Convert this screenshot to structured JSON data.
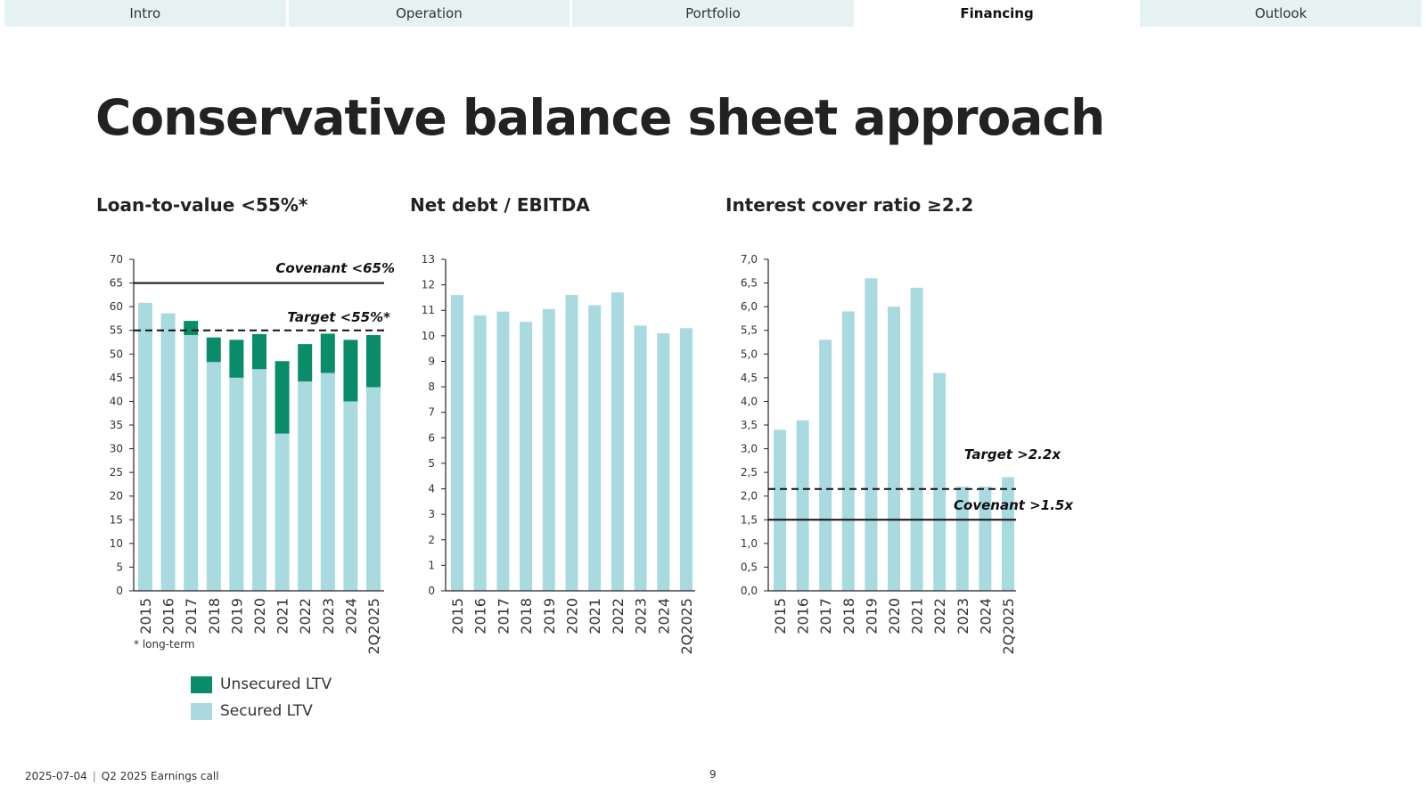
{
  "nav": {
    "tabs": [
      {
        "label": "Intro",
        "active": false
      },
      {
        "label": "Operation",
        "active": false
      },
      {
        "label": "Portfolio",
        "active": false
      },
      {
        "label": "Financing",
        "active": true
      },
      {
        "label": "Outlook",
        "active": false
      }
    ]
  },
  "slide": {
    "title": "Conservative balance sheet approach",
    "footnote": "* long-term",
    "footer_date": "2025-07-04",
    "footer_event": "Q2 2025 Earnings call",
    "page_number": "9"
  },
  "colors": {
    "secured": "#a8dae0",
    "unsecured": "#0a8c6a",
    "text": "#222222",
    "tab_bg": "#e6f2f2"
  },
  "legend": {
    "unsecured_label": "Unsecured LTV",
    "secured_label": "Secured LTV"
  },
  "chart_data": [
    {
      "type": "bar",
      "stacked": true,
      "title": "Loan-to-value <55%*",
      "categories": [
        "2015",
        "2016",
        "2017",
        "2018",
        "2019",
        "2020",
        "2021",
        "2022",
        "2023",
        "2024",
        "2Q2025"
      ],
      "series": [
        {
          "name": "Secured LTV",
          "values": [
            60.8,
            58.6,
            54,
            48.3,
            45,
            46.8,
            33.2,
            44.2,
            46,
            40,
            43
          ]
        },
        {
          "name": "Unsecured LTV",
          "values": [
            0,
            0,
            3,
            5.2,
            8,
            7.4,
            15.3,
            7.9,
            8.3,
            13,
            11
          ]
        }
      ],
      "reference_lines": [
        {
          "label": "Covenant <65%",
          "value": 65,
          "style": "solid"
        },
        {
          "label": "Target <55%*",
          "value": 55,
          "style": "dashed"
        }
      ],
      "yticks": [
        "0",
        "5",
        "10",
        "15",
        "20",
        "25",
        "30",
        "35",
        "40",
        "45",
        "50",
        "55",
        "60",
        "65",
        "70"
      ],
      "ylim": [
        0,
        70
      ]
    },
    {
      "type": "bar",
      "title": "Net debt / EBITDA",
      "categories": [
        "2015",
        "2016",
        "2017",
        "2018",
        "2019",
        "2020",
        "2021",
        "2022",
        "2023",
        "2024",
        "2Q2025"
      ],
      "series": [
        {
          "values": [
            11.6,
            10.8,
            10.95,
            10.55,
            11.05,
            11.6,
            11.2,
            11.7,
            10.4,
            10.1,
            10.3
          ]
        }
      ],
      "reference_lines": [],
      "yticks": [
        "0",
        "1",
        "2",
        "3",
        "4",
        "5",
        "6",
        "7",
        "8",
        "9",
        "10",
        "11",
        "12",
        "13"
      ],
      "ylim": [
        0,
        13
      ]
    },
    {
      "type": "bar",
      "title": "Interest cover ratio ≥2.2",
      "categories": [
        "2015",
        "2016",
        "2017",
        "2018",
        "2019",
        "2020",
        "2021",
        "2022",
        "2023",
        "2024",
        "2Q2025"
      ],
      "series": [
        {
          "values": [
            3.4,
            3.6,
            5.3,
            5.9,
            6.6,
            6.0,
            6.4,
            4.6,
            2.2,
            2.2,
            2.4
          ]
        }
      ],
      "reference_lines": [
        {
          "label": "Target >2.2x",
          "value": 2.15,
          "style": "dashed"
        },
        {
          "label": "Covenant >1.5x",
          "value": 1.5,
          "style": "solid"
        }
      ],
      "yticks": [
        "0,0",
        "0,5",
        "1,0",
        "1,5",
        "2,0",
        "2,5",
        "3,0",
        "3,5",
        "4,0",
        "4,5",
        "5,0",
        "5,5",
        "6,0",
        "6,5",
        "7,0"
      ],
      "ylim": [
        0,
        7
      ]
    }
  ]
}
